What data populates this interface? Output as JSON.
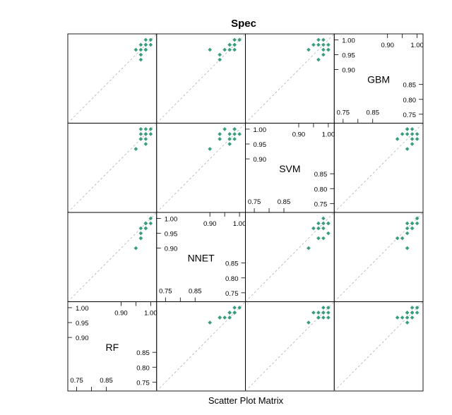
{
  "chart_data": {
    "type": "scatter",
    "title": "Spec",
    "xlabel": "Scatter Plot Matrix",
    "variables": [
      "RF",
      "NNET",
      "SVM",
      "GBM"
    ],
    "axis_range": [
      0.72,
      1.02
    ],
    "tick_values": [
      0.75,
      0.8,
      0.85,
      0.9,
      0.95,
      1.0
    ],
    "tick_labels": {
      "0.75": "0.75",
      "0.80": "0.80",
      "0.85": "0.85",
      "0.90": "0.90",
      "0.95": "0.95",
      "1.00": "1.00"
    },
    "upper_ticks": [
      0.9,
      0.95,
      1.0
    ],
    "lower_ticks": [
      0.75,
      0.8,
      0.85
    ],
    "point_color": "#3a9e7e",
    "identity_line_color": "#b0b0b0",
    "grid": false,
    "data": {
      "RF": [
        0.95,
        0.9667,
        0.9667,
        0.9667,
        0.9667,
        0.9833,
        0.9833,
        0.9833,
        0.9833,
        0.9833,
        1.0,
        1.0
      ],
      "NNET": [
        0.9,
        0.9333,
        0.9333,
        0.95,
        0.9667,
        0.9667,
        0.9667,
        0.9833,
        0.9833,
        0.9833,
        1.0,
        0.9833
      ],
      "SVM": [
        0.9333,
        0.9667,
        0.9833,
        1.0,
        0.9667,
        0.9833,
        0.95,
        0.9667,
        0.9833,
        1.0,
        0.9833,
        1.0
      ],
      "GBM": [
        0.9667,
        0.9333,
        0.95,
        0.9667,
        0.9833,
        0.9667,
        0.9833,
        1.0,
        0.9833,
        0.9667,
        1.0,
        0.9833
      ]
    }
  }
}
